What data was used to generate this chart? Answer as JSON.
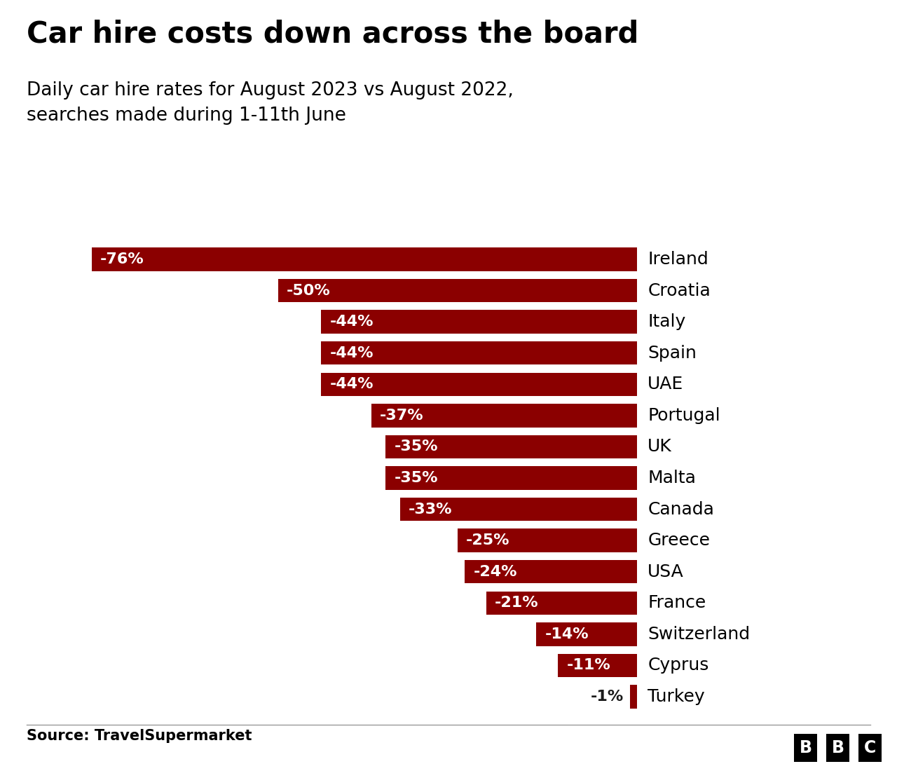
{
  "title": "Car hire costs down across the board",
  "subtitle": "Daily car hire rates for August 2023 vs August 2022,\nsearches made during 1-11th June",
  "source": "Source: TravelSupermarket",
  "categories": [
    "Ireland",
    "Croatia",
    "Italy",
    "Spain",
    "UAE",
    "Portugal",
    "UK",
    "Malta",
    "Canada",
    "Greece",
    "USA",
    "France",
    "Switzerland",
    "Cyprus",
    "Turkey"
  ],
  "values": [
    -76,
    -50,
    -44,
    -44,
    -44,
    -37,
    -35,
    -35,
    -33,
    -25,
    -24,
    -21,
    -14,
    -11,
    -1
  ],
  "bar_color": "#8B0000",
  "label_color_inside": "#FFFFFF",
  "label_color_outside": "#1a1a1a",
  "background_color": "#FFFFFF",
  "title_fontsize": 30,
  "subtitle_fontsize": 19,
  "label_fontsize": 16,
  "category_fontsize": 18,
  "source_fontsize": 15
}
